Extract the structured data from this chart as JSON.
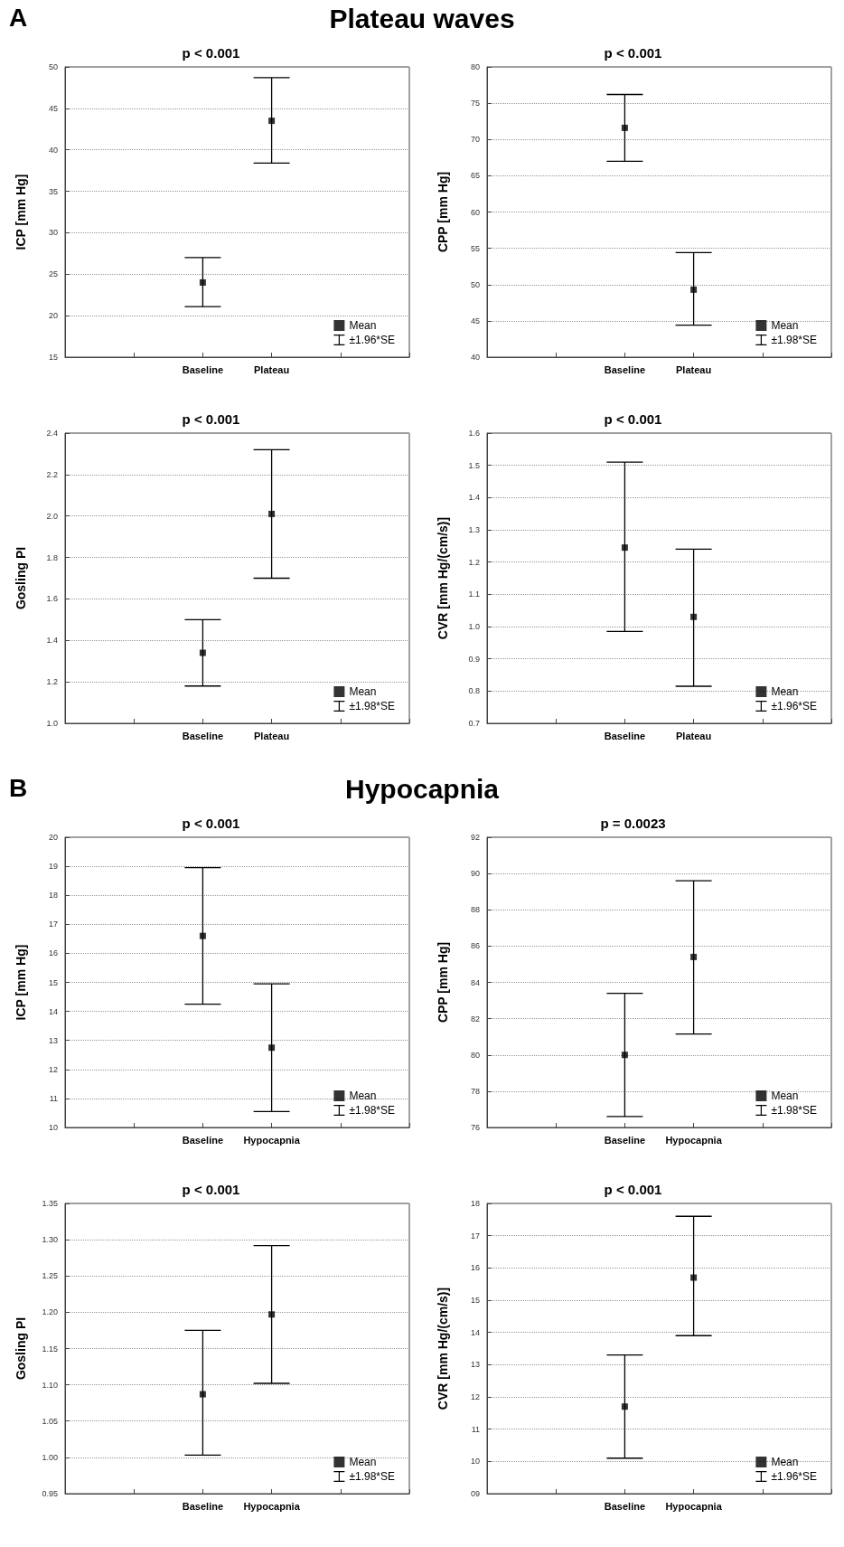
{
  "chart_data": [
    {
      "type": "scatter",
      "title": "p < 0.001",
      "ylabel": "ICP [mm Hg]",
      "annotations": [
        "±1.96*SE",
        "A",
        "Plateau waves"
      ],
      "categories": [
        null,
        null,
        "Baseline",
        "Plateau",
        null,
        null
      ],
      "series": [
        {
          "name": "Mean",
          "color": "#000000",
          "values": [
            null,
            null,
            24,
            43.5,
            null,
            null
          ],
          "errors": [
            null,
            null,
            [
              21.1,
              27
            ],
            [
              38.4,
              48.7
            ],
            null,
            null
          ]
        }
      ],
      "ylim": [
        15,
        50
      ],
      "yticks": [
        15,
        20,
        25,
        30,
        35,
        40,
        45,
        50
      ],
      "grid": "y",
      "legend": "bottom right",
      "marker": "square"
    },
    {
      "type": "scatter",
      "title": "p < 0.001",
      "ylabel": "CPP [mm Hg]",
      "annotations": [
        "±1.98*SE"
      ],
      "categories": [
        null,
        null,
        "Baseline",
        "Plateau",
        null,
        null
      ],
      "series": [
        {
          "name": "Mean",
          "color": "#000000",
          "values": [
            null,
            null,
            71.6,
            49.3,
            null,
            null
          ],
          "errors": [
            null,
            null,
            [
              67,
              76.2
            ],
            [
              44.4,
              54.4
            ],
            null,
            null
          ]
        }
      ],
      "ylim": [
        40,
        80
      ],
      "yticks": [
        40,
        45,
        50,
        55,
        60,
        65,
        70,
        75,
        80
      ],
      "grid": "y",
      "legend": "bottom right",
      "marker": "square"
    },
    {
      "type": "scatter",
      "title": "p < 0.001",
      "ylabel": "Gosling PI",
      "annotations": [
        "±1.98*SE"
      ],
      "categories": [
        null,
        null,
        "Baseline",
        "Plateau",
        null,
        null
      ],
      "series": [
        {
          "name": "Mean",
          "color": "#000000",
          "values": [
            null,
            null,
            1.34,
            2.01,
            null,
            null
          ],
          "errors": [
            null,
            null,
            [
              1.18,
              1.5
            ],
            [
              1.7,
              2.32
            ],
            null,
            null
          ]
        }
      ],
      "ylim": [
        1,
        2.4
      ],
      "yticks": [
        {
          "value": 1,
          "label": "1.0"
        },
        1.2,
        1.4,
        1.6,
        1.8,
        {
          "value": 2,
          "label": "2.0"
        },
        2.2,
        2.4
      ],
      "grid": "y",
      "legend": "bottom right",
      "marker": "square"
    },
    {
      "type": "scatter",
      "title": "p < 0.001",
      "ylabel": "CVR [mm Hg/(cm/s)]",
      "annotations": [
        "±1.96*SE"
      ],
      "categories": [
        null,
        null,
        "Baseline",
        "Plateau",
        null,
        null
      ],
      "series": [
        {
          "name": "Mean",
          "color": "#000000",
          "values": [
            null,
            null,
            1.245,
            1.03,
            null,
            null
          ],
          "errors": [
            null,
            null,
            [
              0.985,
              1.51
            ],
            [
              0.815,
              1.24
            ],
            null,
            null
          ]
        }
      ],
      "ylim": [
        0.7,
        1.6
      ],
      "yticks": [
        0.7,
        0.8,
        0.9,
        {
          "value": 1,
          "label": "1.0"
        },
        1.1,
        1.2,
        1.3,
        1.4,
        1.5,
        1.6
      ],
      "grid": "y",
      "legend": "bottom right",
      "marker": "square"
    },
    {
      "type": "scatter",
      "title": "p < 0.001",
      "ylabel": "ICP [mm Hg]",
      "annotations": [
        "±1.98*SE",
        "B",
        "Hypocapnia"
      ],
      "categories": [
        null,
        null,
        "Baseline",
        "Hypocapnia",
        null,
        null
      ],
      "series": [
        {
          "name": "Mean",
          "color": "#000000",
          "values": [
            null,
            null,
            16.6,
            12.75,
            null,
            null
          ],
          "errors": [
            null,
            null,
            [
              14.25,
              18.95
            ],
            [
              10.55,
              14.95
            ],
            null,
            null
          ]
        }
      ],
      "ylim": [
        10,
        20
      ],
      "yticks": [
        10,
        11,
        12,
        13,
        14,
        15,
        16,
        17,
        18,
        19,
        20
      ],
      "grid": "y",
      "legend": "bottom right",
      "marker": "square"
    },
    {
      "type": "scatter",
      "title": "p = 0.0023",
      "ylabel": "CPP [mm Hg]",
      "annotations": [
        "±1.98*SE"
      ],
      "categories": [
        null,
        null,
        "Baseline",
        "Hypocapnia",
        null,
        null
      ],
      "series": [
        {
          "name": "Mean",
          "color": "#000000",
          "values": [
            null,
            null,
            80,
            85.4,
            null,
            null
          ],
          "errors": [
            null,
            null,
            [
              76.6,
              83.4
            ],
            [
              81.15,
              89.6
            ],
            null,
            null
          ]
        }
      ],
      "ylim": [
        76,
        92
      ],
      "yticks": [
        76,
        78,
        80,
        82,
        84,
        86,
        88,
        90,
        92
      ],
      "grid": "y",
      "legend": "bottom right",
      "marker": "square"
    },
    {
      "type": "scatter",
      "title": "p < 0.001",
      "ylabel": "Gosling PI",
      "annotations": [
        "±1.98*SE"
      ],
      "categories": [
        null,
        null,
        "Baseline",
        "Hypocapnia",
        null,
        null
      ],
      "series": [
        {
          "name": "Mean",
          "color": "#000000",
          "values": [
            null,
            null,
            1.087,
            1.197,
            null,
            null
          ],
          "errors": [
            null,
            null,
            [
              1.003,
              1.175
            ],
            [
              1.102,
              1.292
            ],
            null,
            null
          ]
        }
      ],
      "ylim": [
        0.95,
        1.35
      ],
      "yticks": [
        0.95,
        {
          "value": 1,
          "label": "1.00"
        },
        1.05,
        {
          "value": 1.1,
          "label": "1.10"
        },
        1.15,
        {
          "value": 1.2,
          "label": "1.20"
        },
        1.25,
        {
          "value": 1.3,
          "label": "1.30"
        },
        1.35
      ],
      "grid": "y",
      "legend": "bottom right",
      "marker": "square"
    },
    {
      "type": "scatter",
      "title": "p < 0.001",
      "ylabel": "CVR [mm Hg/(cm/s)]",
      "annotations": [
        "±1.96*SE"
      ],
      "categories": [
        null,
        null,
        "Baseline",
        "Hypocapnia",
        null,
        null
      ],
      "series": [
        {
          "name": "Mean",
          "color": "#000000",
          "values": [
            null,
            null,
            11.7,
            15.7,
            null,
            null
          ],
          "errors": [
            null,
            null,
            [
              10.1,
              13.3
            ],
            [
              13.9,
              17.6
            ],
            null,
            null
          ]
        }
      ],
      "ylim": [
        9,
        18
      ],
      "yticks": [
        {
          "value": 9,
          "label": "09"
        },
        10,
        11,
        12,
        13,
        14,
        15,
        16,
        17,
        18
      ],
      "grid": "y",
      "legend": "bottom right",
      "marker": "square"
    }
  ]
}
